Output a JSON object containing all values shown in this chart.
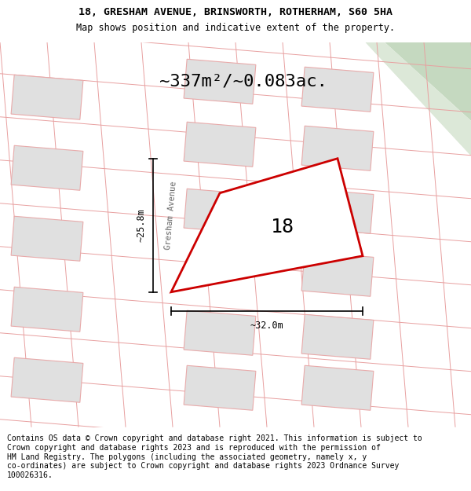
{
  "title_line1": "18, GRESHAM AVENUE, BRINSWORTH, ROTHERHAM, S60 5HA",
  "title_line2": "Map shows position and indicative extent of the property.",
  "area_label": "~337m²/~0.083ac.",
  "property_number": "18",
  "dim_height": "~25.8m",
  "dim_width": "~32.0m",
  "street_label": "Gresham Avenue",
  "footer": "Contains OS data © Crown copyright and database right 2021. This information is subject to\nCrown copyright and database rights 2023 and is reproduced with the permission of\nHM Land Registry. The polygons (including the associated geometry, namely x, y\nco-ordinates) are subject to Crown copyright and database rights 2023 Ordnance Survey\n100026316.",
  "map_bg": "#f0efeb",
  "building_fill": "#e0e0e0",
  "building_edge": "#e8aaaa",
  "plot_line_color": "#e8a0a0",
  "highlight_fill": "#ffffff",
  "highlight_edge": "#cc0000",
  "green_color": "#c5d9c0",
  "green_edge": "#d0deca",
  "road_color": "#ffffff",
  "title_fontsize": 9.5,
  "subtitle_fontsize": 8.5,
  "footer_fontsize": 7.0,
  "area_fontsize": 16,
  "number_fontsize": 18,
  "dim_fontsize": 8.5,
  "street_fontsize": 7.5
}
